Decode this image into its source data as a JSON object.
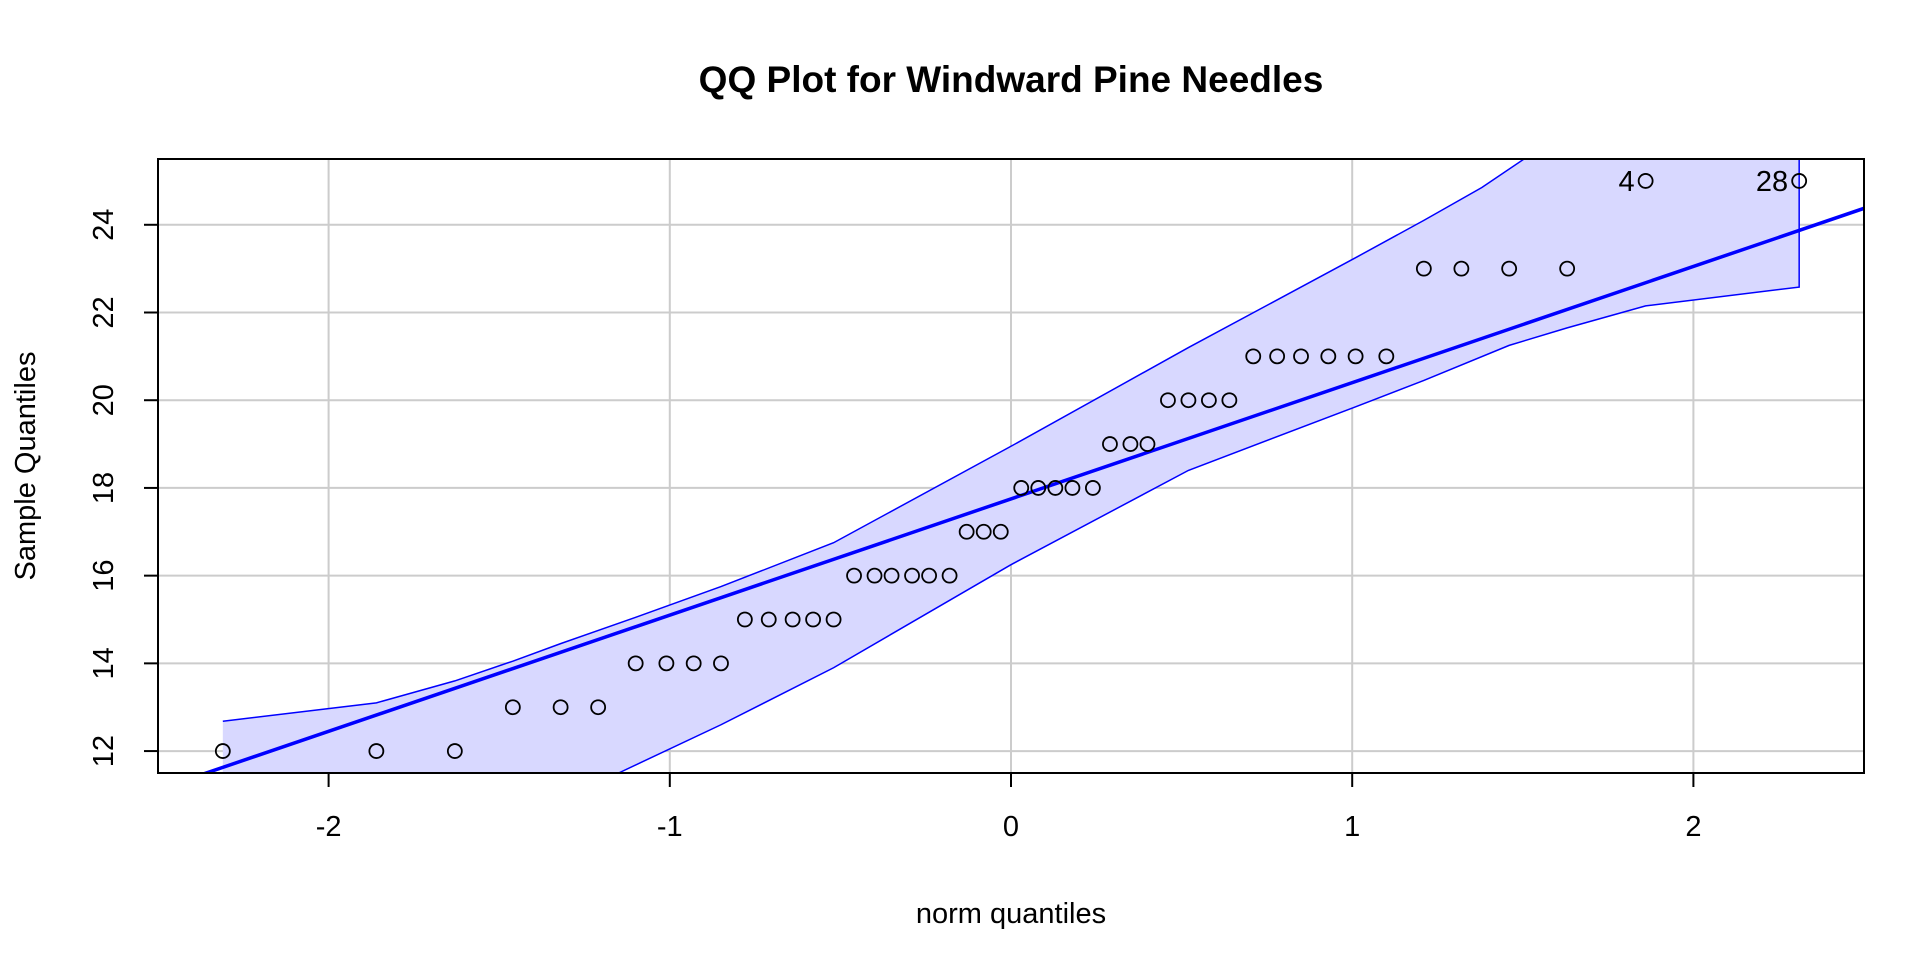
{
  "chart_data": {
    "type": "scatter",
    "title": "QQ Plot for Windward Pine Needles",
    "xlabel": "norm quantiles",
    "ylabel": "Sample Quantiles",
    "xlim": [
      -2.5,
      2.5
    ],
    "ylim": [
      11.5,
      25.5
    ],
    "x_ticks": [
      -2,
      -1,
      0,
      1,
      2
    ],
    "x_tick_labels": [
      "-2",
      "-1",
      "0",
      "1",
      "2"
    ],
    "y_ticks": [
      12,
      14,
      16,
      18,
      20,
      22,
      24
    ],
    "y_tick_labels": [
      "12",
      "14",
      "16",
      "18",
      "20",
      "22",
      "24"
    ],
    "grid": true,
    "colors": {
      "reference_line": "#0000ff",
      "envelope_fill": "#d8d8ff",
      "envelope_border": "#0000ff",
      "points": "#000000",
      "grid": "#cccccc"
    },
    "points": [
      {
        "x": -2.31,
        "y": 12
      },
      {
        "x": -1.86,
        "y": 12
      },
      {
        "x": -1.63,
        "y": 12
      },
      {
        "x": -1.46,
        "y": 13
      },
      {
        "x": -1.32,
        "y": 13
      },
      {
        "x": -1.21,
        "y": 13
      },
      {
        "x": -1.1,
        "y": 14
      },
      {
        "x": -1.01,
        "y": 14
      },
      {
        "x": -0.93,
        "y": 14
      },
      {
        "x": -0.85,
        "y": 14
      },
      {
        "x": -0.78,
        "y": 15
      },
      {
        "x": -0.71,
        "y": 15
      },
      {
        "x": -0.64,
        "y": 15
      },
      {
        "x": -0.58,
        "y": 15
      },
      {
        "x": -0.52,
        "y": 15
      },
      {
        "x": -0.46,
        "y": 16
      },
      {
        "x": -0.4,
        "y": 16
      },
      {
        "x": -0.35,
        "y": 16
      },
      {
        "x": -0.29,
        "y": 16
      },
      {
        "x": -0.24,
        "y": 16
      },
      {
        "x": -0.18,
        "y": 16
      },
      {
        "x": -0.13,
        "y": 17
      },
      {
        "x": -0.08,
        "y": 17
      },
      {
        "x": -0.03,
        "y": 17
      },
      {
        "x": 0.03,
        "y": 18
      },
      {
        "x": 0.08,
        "y": 18
      },
      {
        "x": 0.13,
        "y": 18
      },
      {
        "x": 0.18,
        "y": 18
      },
      {
        "x": 0.24,
        "y": 18
      },
      {
        "x": 0.29,
        "y": 19
      },
      {
        "x": 0.35,
        "y": 19
      },
      {
        "x": 0.4,
        "y": 19
      },
      {
        "x": 0.46,
        "y": 20
      },
      {
        "x": 0.52,
        "y": 20
      },
      {
        "x": 0.58,
        "y": 20
      },
      {
        "x": 0.64,
        "y": 20
      },
      {
        "x": 0.71,
        "y": 21
      },
      {
        "x": 0.78,
        "y": 21
      },
      {
        "x": 0.85,
        "y": 21
      },
      {
        "x": 0.93,
        "y": 21
      },
      {
        "x": 1.01,
        "y": 21
      },
      {
        "x": 1.1,
        "y": 21
      },
      {
        "x": 1.21,
        "y": 23
      },
      {
        "x": 1.32,
        "y": 23
      },
      {
        "x": 1.46,
        "y": 23
      },
      {
        "x": 1.63,
        "y": 23
      },
      {
        "x": 1.86,
        "y": 25,
        "label": "4"
      },
      {
        "x": 2.31,
        "y": 25,
        "label": "28"
      }
    ],
    "reference_line": {
      "intercept": 17.75,
      "slope": 2.65
    },
    "envelope": {
      "upper": [
        [
          -2.31,
          12.68
        ],
        [
          -1.86,
          13.1
        ],
        [
          -1.63,
          13.6
        ],
        [
          -1.46,
          14.05
        ],
        [
          -1.32,
          14.45
        ],
        [
          -1.1,
          15.05
        ],
        [
          -0.85,
          15.75
        ],
        [
          -0.52,
          16.75
        ],
        [
          0.0,
          18.95
        ],
        [
          0.52,
          21.2
        ],
        [
          1.01,
          23.25
        ],
        [
          1.21,
          24.1
        ],
        [
          1.38,
          24.85
        ],
        [
          1.58,
          25.9
        ]
      ],
      "lower": [
        [
          -2.31,
          11.0
        ],
        [
          -1.15,
          11.5
        ],
        [
          -0.85,
          12.6
        ],
        [
          -0.52,
          13.9
        ],
        [
          0.0,
          16.25
        ],
        [
          0.52,
          18.4
        ],
        [
          1.01,
          19.85
        ],
        [
          1.21,
          20.45
        ],
        [
          1.46,
          21.25
        ],
        [
          1.63,
          21.65
        ],
        [
          1.86,
          22.15
        ],
        [
          2.31,
          22.58
        ],
        [
          2.31,
          26.0
        ]
      ]
    }
  }
}
